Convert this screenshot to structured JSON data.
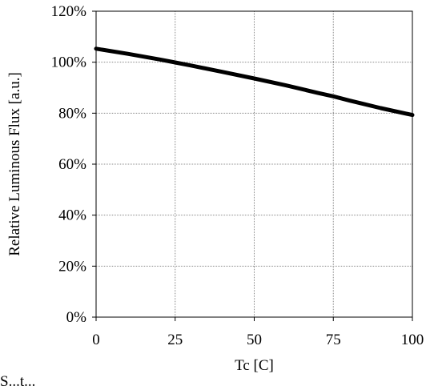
{
  "chart_data": {
    "type": "line",
    "title": "",
    "xlabel": "Tc [C]",
    "ylabel": "Relative Luminous Flux [a.u.]",
    "xlim": [
      0,
      100
    ],
    "ylim": [
      0,
      120
    ],
    "x_ticks": [
      0,
      25,
      50,
      75,
      100
    ],
    "y_ticks": [
      0,
      20,
      40,
      60,
      80,
      100,
      120
    ],
    "y_tick_suffix": "%",
    "grid": true,
    "series": [
      {
        "x": [
          0,
          10,
          20,
          25,
          30,
          40,
          50,
          60,
          70,
          75,
          80,
          90,
          100
        ],
        "values": [
          105.3,
          103.3,
          101.1,
          99.9,
          98.7,
          96.2,
          93.6,
          90.9,
          88.0,
          86.6,
          85.0,
          82.0,
          79.3
        ],
        "color": "#000000"
      }
    ]
  },
  "footer": {
    "partial_text": "S...t..."
  }
}
